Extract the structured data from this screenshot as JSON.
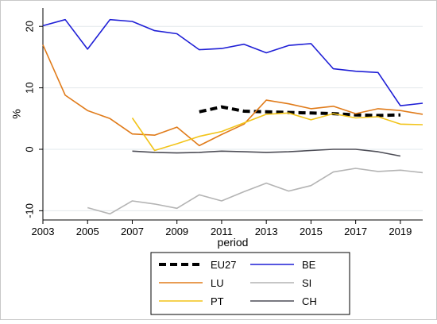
{
  "chart_data": {
    "type": "line",
    "xlabel": "period",
    "ylabel": "%",
    "xlim": [
      2003,
      2020
    ],
    "ylim": [
      -11.5,
      23
    ],
    "xticks": [
      2003,
      2005,
      2007,
      2009,
      2011,
      2013,
      2015,
      2017,
      2019
    ],
    "yticks": [
      -10,
      0,
      10,
      20
    ],
    "grid": "horizontal",
    "legend": "bottom",
    "series": [
      {
        "name": "EU27",
        "color": "#000000",
        "dash": "dashed",
        "x": [
          2010,
          2011,
          2012,
          2013,
          2014,
          2015,
          2016,
          2017,
          2018,
          2019
        ],
        "y": [
          6.1,
          6.9,
          6.2,
          6.1,
          6.0,
          5.9,
          5.8,
          5.6,
          5.5,
          5.6
        ]
      },
      {
        "name": "BE",
        "color": "#1f1fd6",
        "dash": "solid",
        "x": [
          2003,
          2004,
          2005,
          2006,
          2007,
          2008,
          2009,
          2010,
          2011,
          2012,
          2013,
          2014,
          2015,
          2016,
          2017,
          2018,
          2019,
          2020
        ],
        "y": [
          20.1,
          21.1,
          16.3,
          21.1,
          20.8,
          19.3,
          18.8,
          16.2,
          16.4,
          17.1,
          15.7,
          16.9,
          17.2,
          13.1,
          12.7,
          12.5,
          7.1,
          7.5
        ]
      },
      {
        "name": "LU",
        "color": "#e07b1a",
        "dash": "solid",
        "x": [
          2003,
          2004,
          2005,
          2006,
          2007,
          2008,
          2009,
          2010,
          2011,
          2012,
          2013,
          2014,
          2015,
          2016,
          2017,
          2018,
          2019,
          2020
        ],
        "y": [
          17.0,
          8.8,
          6.3,
          5.0,
          2.5,
          2.3,
          3.6,
          0.6,
          2.4,
          4.1,
          8.0,
          7.4,
          6.6,
          7.0,
          5.8,
          6.6,
          6.3,
          5.7
        ]
      },
      {
        "name": "SI",
        "color": "#b4b4b4",
        "dash": "solid",
        "x": [
          2005,
          2006,
          2007,
          2008,
          2009,
          2010,
          2011,
          2012,
          2013,
          2014,
          2015,
          2016,
          2017,
          2018,
          2019,
          2020
        ],
        "y": [
          -9.5,
          -10.5,
          -8.4,
          -8.9,
          -9.6,
          -7.4,
          -8.4,
          -6.9,
          -5.5,
          -6.8,
          -5.9,
          -3.7,
          -3.1,
          -3.6,
          -3.4,
          -3.8
        ]
      },
      {
        "name": "PT",
        "color": "#f2c419",
        "dash": "solid",
        "x": [
          2007,
          2008,
          2009,
          2010,
          2011,
          2012,
          2013,
          2014,
          2015,
          2016,
          2017,
          2018,
          2019,
          2020
        ],
        "y": [
          5.1,
          -0.2,
          0.9,
          2.1,
          2.9,
          4.3,
          5.7,
          5.9,
          4.8,
          5.8,
          5.1,
          5.3,
          4.1,
          4.0
        ]
      },
      {
        "name": "CH",
        "color": "#4d4d56",
        "dash": "solid",
        "x": [
          2007,
          2008,
          2009,
          2010,
          2011,
          2012,
          2013,
          2014,
          2015,
          2016,
          2017,
          2018,
          2019
        ],
        "y": [
          -0.3,
          -0.5,
          -0.6,
          -0.5,
          -0.3,
          -0.4,
          -0.5,
          -0.4,
          -0.2,
          0.0,
          0.0,
          -0.4,
          -1.1
        ]
      }
    ],
    "legend_order": [
      [
        "EU27",
        "BE"
      ],
      [
        "LU",
        "SI"
      ],
      [
        "PT",
        "CH"
      ]
    ]
  }
}
